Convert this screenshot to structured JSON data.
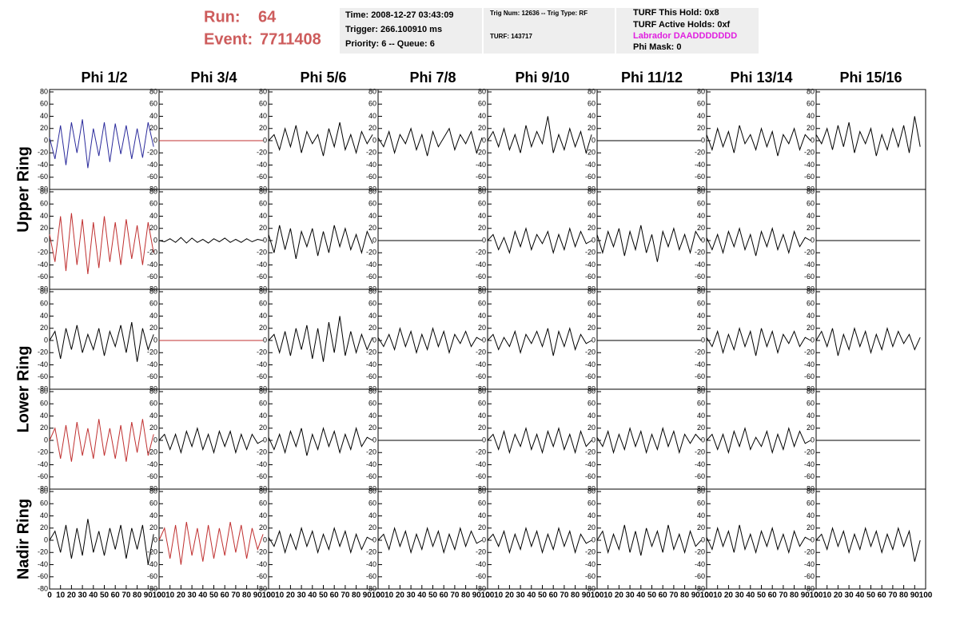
{
  "header": {
    "run_label": "Run:",
    "run": "64",
    "event_label": "Event:",
    "event": "7711408",
    "box1": [
      "Time: 2008-12-27 03:43:09",
      "Trigger: 266.100910 ms",
      "Priority: 6 -- Queue: 6"
    ],
    "box2": [
      "Trig Num: 12636 -- Trig Type: RF",
      "TURF: 143717"
    ],
    "box3": [
      "TURF This Hold: 0x8",
      "TURF Active Holds: 0xf",
      "Labrador DAADDDDDDD",
      "Phi Mask: 0"
    ]
  },
  "chart_data": {
    "type": "line",
    "columns": [
      "Phi 1/2",
      "Phi 3/4",
      "Phi 5/6",
      "Phi 7/8",
      "Phi 9/10",
      "Phi 11/12",
      "Phi 13/14",
      "Phi 15/16"
    ],
    "rings": [
      {
        "name": "Upper Ring",
        "rows": 2
      },
      {
        "name": "Lower Ring",
        "rows": 2
      },
      {
        "name": "Nadir Ring",
        "rows": 1
      }
    ],
    "xlim": [
      0,
      100
    ],
    "ylim": [
      -80,
      80
    ],
    "xticks": [
      0,
      10,
      20,
      30,
      40,
      50,
      60,
      70,
      80,
      90,
      100
    ],
    "yticks": [
      80,
      60,
      40,
      20,
      0,
      -20,
      -40,
      -60,
      -80
    ],
    "x": [
      0,
      5,
      10,
      15,
      20,
      25,
      30,
      35,
      40,
      45,
      50,
      55,
      60,
      65,
      70,
      75,
      80,
      85,
      90,
      95
    ],
    "panels": [
      {
        "color": "#2b2b9c",
        "values": [
          5,
          -30,
          25,
          -40,
          30,
          -20,
          35,
          -45,
          20,
          -25,
          30,
          -35,
          28,
          -22,
          25,
          -30,
          20,
          -28,
          30,
          -10
        ]
      },
      {
        "color": "#c03030",
        "values": [
          0,
          0,
          0,
          0,
          0,
          0,
          0,
          0,
          0,
          0,
          0,
          0,
          0,
          0,
          0,
          0,
          0,
          0,
          0,
          0
        ]
      },
      {
        "color": "#000000",
        "values": [
          0,
          10,
          -15,
          20,
          -10,
          25,
          -20,
          15,
          -5,
          10,
          -25,
          20,
          -10,
          30,
          -15,
          10,
          -20,
          15,
          -5,
          10
        ]
      },
      {
        "color": "#000000",
        "values": [
          5,
          -10,
          15,
          -20,
          10,
          -5,
          20,
          -15,
          10,
          -25,
          15,
          -10,
          5,
          20,
          -15,
          10,
          -5,
          15,
          -20,
          5
        ]
      },
      {
        "color": "#000000",
        "values": [
          0,
          15,
          -10,
          20,
          -15,
          10,
          -20,
          25,
          -10,
          15,
          -5,
          40,
          -20,
          10,
          -15,
          20,
          -10,
          15,
          -20,
          10
        ]
      },
      {
        "color": "#000000",
        "values": [
          0,
          0,
          0,
          0,
          0,
          0,
          0,
          0,
          0,
          0,
          0,
          0,
          0,
          0,
          0,
          0,
          0,
          0,
          0,
          0
        ]
      },
      {
        "color": "#000000",
        "values": [
          10,
          -15,
          20,
          -10,
          15,
          -20,
          25,
          -5,
          10,
          -15,
          20,
          -10,
          15,
          -25,
          10,
          -5,
          20,
          -15,
          10,
          0
        ]
      },
      {
        "color": "#000000",
        "values": [
          10,
          -5,
          20,
          -15,
          25,
          -10,
          30,
          -20,
          15,
          -5,
          20,
          -25,
          10,
          -15,
          20,
          -10,
          25,
          -20,
          40,
          -10
        ]
      },
      {
        "color": "#c03030",
        "values": [
          10,
          -35,
          40,
          -50,
          45,
          -40,
          35,
          -55,
          30,
          -45,
          40,
          -35,
          30,
          -40,
          35,
          -30,
          25,
          -40,
          30,
          -20
        ]
      },
      {
        "color": "#000000",
        "values": [
          0,
          -2,
          3,
          -3,
          5,
          -4,
          4,
          -3,
          2,
          -4,
          3,
          -2,
          4,
          -3,
          2,
          -3,
          3,
          -2,
          2,
          0
        ]
      },
      {
        "color": "#000000",
        "values": [
          10,
          -20,
          25,
          -15,
          20,
          -30,
          15,
          -10,
          20,
          -25,
          15,
          -20,
          25,
          -10,
          20,
          -15,
          10,
          -20,
          15,
          -5
        ]
      },
      {
        "color": "#000000",
        "values": [
          0,
          0,
          0,
          0,
          0,
          0,
          0,
          0,
          0,
          0,
          0,
          0,
          0,
          0,
          0,
          0,
          0,
          0,
          0,
          0
        ]
      },
      {
        "color": "#000000",
        "values": [
          0,
          10,
          -15,
          5,
          -20,
          15,
          -10,
          20,
          -15,
          10,
          -5,
          15,
          -20,
          10,
          -15,
          20,
          -10,
          15,
          -5,
          0
        ]
      },
      {
        "color": "#000000",
        "values": [
          10,
          -20,
          15,
          -10,
          20,
          -25,
          15,
          -15,
          25,
          -20,
          10,
          -35,
          15,
          -10,
          20,
          -15,
          10,
          -20,
          15,
          0
        ]
      },
      {
        "color": "#000000",
        "values": [
          5,
          -15,
          10,
          -20,
          15,
          -10,
          20,
          -15,
          10,
          -25,
          15,
          -10,
          20,
          -15,
          10,
          -20,
          15,
          -10,
          5,
          0
        ]
      },
      {
        "color": "#000000",
        "values": [
          0,
          0,
          0,
          0,
          0,
          0,
          0,
          0,
          0,
          0,
          0,
          0,
          0,
          0,
          0,
          0,
          0,
          0,
          0,
          0
        ]
      },
      {
        "color": "#000000",
        "values": [
          0,
          15,
          -30,
          20,
          -15,
          25,
          -20,
          10,
          -15,
          20,
          -25,
          15,
          -10,
          25,
          -20,
          30,
          -35,
          20,
          -15,
          10
        ]
      },
      {
        "color": "#c03030",
        "values": [
          0,
          0,
          0,
          0,
          0,
          0,
          0,
          0,
          0,
          0,
          0,
          0,
          0,
          0,
          0,
          0,
          0,
          0,
          0,
          0
        ]
      },
      {
        "color": "#000000",
        "values": [
          0,
          10,
          -20,
          15,
          -25,
          20,
          -15,
          25,
          -30,
          20,
          -35,
          30,
          -20,
          40,
          -25,
          15,
          -20,
          10,
          -15,
          5
        ]
      },
      {
        "color": "#000000",
        "values": [
          5,
          -10,
          10,
          -15,
          20,
          -10,
          15,
          -20,
          10,
          -15,
          20,
          -10,
          15,
          -20,
          10,
          -5,
          15,
          -10,
          5,
          0
        ]
      },
      {
        "color": "#000000",
        "values": [
          0,
          10,
          -15,
          5,
          -10,
          15,
          -20,
          10,
          -5,
          15,
          -10,
          20,
          -25,
          15,
          -10,
          20,
          -15,
          10,
          -5,
          0
        ]
      },
      {
        "color": "#000000",
        "values": [
          0,
          0,
          0,
          0,
          0,
          0,
          0,
          0,
          0,
          0,
          0,
          0,
          0,
          0,
          0,
          0,
          0,
          0,
          0,
          0
        ]
      },
      {
        "color": "#000000",
        "values": [
          5,
          -10,
          15,
          -20,
          10,
          -15,
          20,
          -10,
          15,
          -25,
          20,
          -10,
          15,
          -20,
          10,
          -5,
          15,
          -10,
          5,
          0
        ]
      },
      {
        "color": "#000000",
        "values": [
          0,
          15,
          -10,
          20,
          -25,
          10,
          -15,
          20,
          -10,
          15,
          -20,
          10,
          -15,
          20,
          -10,
          15,
          -5,
          10,
          -15,
          5
        ]
      },
      {
        "color": "#c03030",
        "values": [
          0,
          20,
          -30,
          25,
          -35,
          30,
          -25,
          20,
          -30,
          35,
          -25,
          20,
          -30,
          25,
          -35,
          30,
          -20,
          35,
          -25,
          10
        ]
      },
      {
        "color": "#000000",
        "values": [
          0,
          10,
          -15,
          10,
          -20,
          15,
          -10,
          20,
          -15,
          10,
          -20,
          15,
          -10,
          15,
          -20,
          10,
          -15,
          10,
          -5,
          0
        ]
      },
      {
        "color": "#000000",
        "values": [
          5,
          -15,
          10,
          -20,
          15,
          -10,
          20,
          -25,
          10,
          -15,
          20,
          -10,
          15,
          -20,
          10,
          -15,
          20,
          -10,
          5,
          0
        ]
      },
      {
        "color": "#000000",
        "values": [
          0,
          0,
          0,
          0,
          0,
          0,
          0,
          0,
          0,
          0,
          0,
          0,
          0,
          0,
          0,
          0,
          0,
          0,
          0,
          0
        ]
      },
      {
        "color": "#000000",
        "values": [
          0,
          10,
          -15,
          15,
          -20,
          10,
          -10,
          20,
          -15,
          10,
          -20,
          15,
          -10,
          20,
          -15,
          10,
          -20,
          15,
          -10,
          0
        ]
      },
      {
        "color": "#000000",
        "values": [
          5,
          -10,
          15,
          -20,
          10,
          -15,
          20,
          -10,
          15,
          -20,
          10,
          -15,
          20,
          -10,
          15,
          -20,
          10,
          -5,
          10,
          0
        ]
      },
      {
        "color": "#000000",
        "values": [
          0,
          10,
          -15,
          10,
          -20,
          15,
          -10,
          20,
          -15,
          5,
          -10,
          15,
          -20,
          10,
          -15,
          20,
          -10,
          15,
          -5,
          0
        ]
      },
      {
        "color": "#000000",
        "values": [
          0,
          0,
          0,
          0,
          0,
          0,
          0,
          0,
          0,
          0,
          0,
          0,
          0,
          0,
          0,
          0,
          0,
          0,
          0,
          0
        ]
      },
      {
        "color": "#000000",
        "values": [
          0,
          15,
          -20,
          25,
          -30,
          20,
          -25,
          35,
          -20,
          15,
          -25,
          20,
          -15,
          25,
          -30,
          20,
          -15,
          25,
          -40,
          10
        ]
      },
      {
        "color": "#c03030",
        "values": [
          0,
          20,
          -30,
          25,
          -40,
          30,
          -25,
          20,
          -35,
          25,
          -30,
          20,
          -25,
          30,
          -20,
          25,
          -30,
          20,
          -15,
          10
        ]
      },
      {
        "color": "#000000",
        "values": [
          5,
          -10,
          15,
          -20,
          10,
          -15,
          20,
          -10,
          15,
          -20,
          10,
          -15,
          20,
          -10,
          15,
          -20,
          10,
          -15,
          5,
          0
        ]
      },
      {
        "color": "#000000",
        "values": [
          0,
          10,
          -15,
          20,
          -10,
          15,
          -20,
          10,
          -15,
          20,
          -10,
          15,
          -20,
          10,
          -15,
          20,
          -10,
          15,
          -5,
          0
        ]
      },
      {
        "color": "#000000",
        "values": [
          0,
          10,
          -10,
          15,
          -20,
          10,
          -15,
          20,
          -10,
          15,
          -20,
          10,
          -15,
          20,
          -10,
          15,
          -20,
          10,
          -5,
          0
        ]
      },
      {
        "color": "#000000",
        "values": [
          0,
          15,
          -20,
          10,
          -15,
          25,
          -20,
          15,
          -25,
          20,
          -10,
          15,
          -20,
          25,
          -15,
          10,
          -20,
          15,
          -10,
          0
        ]
      },
      {
        "color": "#000000",
        "values": [
          5,
          -15,
          20,
          -10,
          15,
          -20,
          25,
          -15,
          10,
          -20,
          15,
          -10,
          20,
          -15,
          10,
          -20,
          15,
          -10,
          5,
          0
        ]
      },
      {
        "color": "#000000",
        "values": [
          0,
          10,
          -15,
          20,
          -10,
          15,
          -20,
          10,
          -15,
          20,
          -10,
          15,
          -20,
          10,
          -15,
          20,
          -10,
          15,
          -35,
          0
        ]
      }
    ]
  }
}
